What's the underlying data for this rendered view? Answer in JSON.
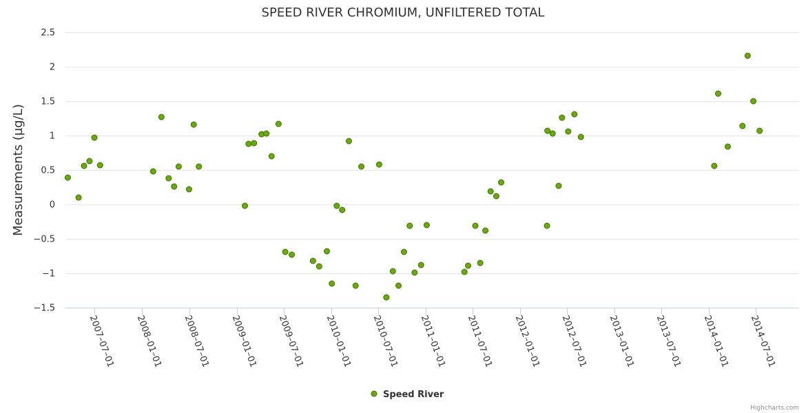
{
  "chart_data": {
    "type": "scatter",
    "title": "SPEED RIVER CHROMIUM, UNFILTERED TOTAL",
    "xlabel": "",
    "ylabel": "Measurements (µg/L)",
    "ylim": [
      -1.5,
      2.5
    ],
    "xlim": [
      "2007-03-10",
      "2014-12-15"
    ],
    "yticks": [
      -1.5,
      -1,
      -0.5,
      0,
      0.5,
      1,
      1.5,
      2,
      2.5
    ],
    "ytick_labels": [
      "−1.5",
      "−1",
      "−0.5",
      "0",
      "0.5",
      "1",
      "1.5",
      "2",
      "2.5"
    ],
    "xticks": [
      "2007-07-01",
      "2008-01-01",
      "2008-07-01",
      "2009-01-01",
      "2009-07-01",
      "2010-01-01",
      "2010-07-01",
      "2011-01-01",
      "2011-07-01",
      "2012-01-01",
      "2012-07-01",
      "2013-01-01",
      "2013-07-01",
      "2014-01-01",
      "2014-07-01"
    ],
    "xtick_labels": [
      "2007–07–01",
      "2008–01–01",
      "2008–07–01",
      "2009–01–01",
      "2009–07–01",
      "2010–01–01",
      "2010–07–01",
      "2011–01–01",
      "2011–07–01",
      "2012–01–01",
      "2012–07–01",
      "2013–01–01",
      "2013–07–01",
      "2014–01–01",
      "2014–07–01"
    ],
    "grid": true,
    "legend_position": "bottom-center",
    "series": [
      {
        "name": "Speed River",
        "color": "#6aaa0f",
        "points": [
          {
            "x": "2007-03-19",
            "y": 0.39
          },
          {
            "x": "2007-04-30",
            "y": 0.1
          },
          {
            "x": "2007-05-21",
            "y": 0.56
          },
          {
            "x": "2007-06-11",
            "y": 0.63
          },
          {
            "x": "2007-06-30",
            "y": 0.97
          },
          {
            "x": "2007-07-22",
            "y": 0.57
          },
          {
            "x": "2008-02-12",
            "y": 0.48
          },
          {
            "x": "2008-03-15",
            "y": 1.27
          },
          {
            "x": "2008-04-12",
            "y": 0.38
          },
          {
            "x": "2008-05-03",
            "y": 0.26
          },
          {
            "x": "2008-05-21",
            "y": 0.55
          },
          {
            "x": "2008-06-30",
            "y": 0.22
          },
          {
            "x": "2008-07-18",
            "y": 1.16
          },
          {
            "x": "2008-08-07",
            "y": 0.55
          },
          {
            "x": "2009-02-01",
            "y": -0.02
          },
          {
            "x": "2009-02-15",
            "y": 0.88
          },
          {
            "x": "2009-03-08",
            "y": 0.89
          },
          {
            "x": "2009-04-06",
            "y": 1.02
          },
          {
            "x": "2009-04-25",
            "y": 1.03
          },
          {
            "x": "2009-05-15",
            "y": 0.7
          },
          {
            "x": "2009-06-11",
            "y": 1.17
          },
          {
            "x": "2009-07-07",
            "y": -0.69
          },
          {
            "x": "2009-08-01",
            "y": -0.73
          },
          {
            "x": "2009-10-22",
            "y": -0.82
          },
          {
            "x": "2009-11-15",
            "y": -0.9
          },
          {
            "x": "2009-12-15",
            "y": -0.68
          },
          {
            "x": "2010-01-03",
            "y": -1.15
          },
          {
            "x": "2010-01-22",
            "y": -0.02
          },
          {
            "x": "2010-02-12",
            "y": -0.08
          },
          {
            "x": "2010-03-10",
            "y": 0.92
          },
          {
            "x": "2010-04-05",
            "y": -1.18
          },
          {
            "x": "2010-04-27",
            "y": 0.55
          },
          {
            "x": "2010-07-05",
            "y": 0.58
          },
          {
            "x": "2010-08-02",
            "y": -1.35
          },
          {
            "x": "2010-08-27",
            "y": -0.97
          },
          {
            "x": "2010-09-18",
            "y": -1.18
          },
          {
            "x": "2010-10-09",
            "y": -0.69
          },
          {
            "x": "2010-10-31",
            "y": -0.31
          },
          {
            "x": "2010-11-19",
            "y": -0.99
          },
          {
            "x": "2010-12-14",
            "y": -0.88
          },
          {
            "x": "2011-01-05",
            "y": -0.3
          },
          {
            "x": "2011-05-31",
            "y": -0.98
          },
          {
            "x": "2011-06-14",
            "y": -0.89
          },
          {
            "x": "2011-07-12",
            "y": -0.31
          },
          {
            "x": "2011-07-31",
            "y": -0.85
          },
          {
            "x": "2011-08-20",
            "y": -0.38
          },
          {
            "x": "2011-09-09",
            "y": 0.19
          },
          {
            "x": "2011-10-01",
            "y": 0.12
          },
          {
            "x": "2011-10-20",
            "y": 0.32
          },
          {
            "x": "2012-04-14",
            "y": -0.31
          },
          {
            "x": "2012-04-16",
            "y": 1.07
          },
          {
            "x": "2012-05-06",
            "y": 1.03
          },
          {
            "x": "2012-05-29",
            "y": 0.27
          },
          {
            "x": "2012-06-11",
            "y": 1.26
          },
          {
            "x": "2012-07-05",
            "y": 1.06
          },
          {
            "x": "2012-07-29",
            "y": 1.31
          },
          {
            "x": "2012-08-23",
            "y": 0.98
          },
          {
            "x": "2014-01-21",
            "y": 0.56
          },
          {
            "x": "2014-02-05",
            "y": 1.61
          },
          {
            "x": "2014-03-14",
            "y": 0.84
          },
          {
            "x": "2014-05-10",
            "y": 1.14
          },
          {
            "x": "2014-05-30",
            "y": 2.16
          },
          {
            "x": "2014-06-21",
            "y": 1.5
          },
          {
            "x": "2014-07-15",
            "y": 1.07
          }
        ]
      }
    ]
  },
  "credits": "Highcharts.com"
}
